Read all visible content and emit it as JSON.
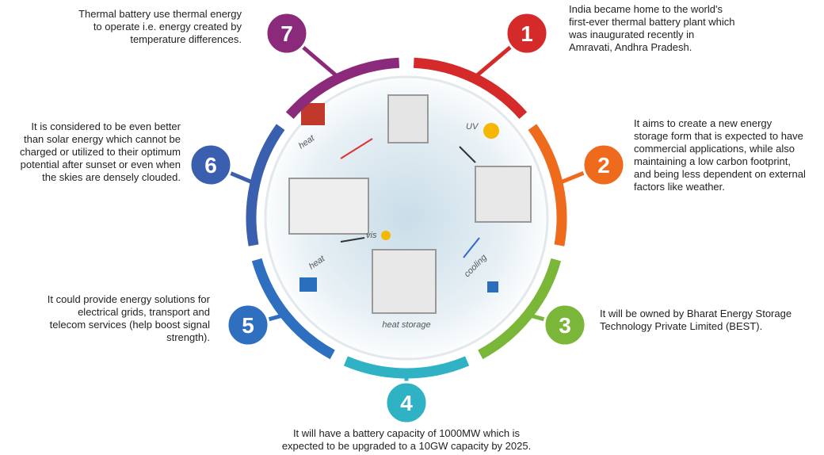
{
  "items": [
    {
      "number": "1",
      "lines": [
        "India became home to the world's",
        "first-ever thermal battery plant which",
        "was inaugurated recently in",
        "Amravati, Andhra Pradesh."
      ]
    },
    {
      "number": "2",
      "lines": [
        "It aims to create a new energy",
        "storage form that is expected to have",
        "commercial applications, while also",
        "maintaining a low carbon footprint,",
        "and being less dependent on external",
        "factors like weather."
      ]
    },
    {
      "number": "3",
      "lines": [
        "It will be owned by Bharat Energy Storage",
        "Technology Private Limited (BEST)."
      ]
    },
    {
      "number": "4",
      "lines": [
        "It will have a battery capacity of 1000MW which is",
        "expected to be upgraded to a 10GW capacity by 2025."
      ]
    },
    {
      "number": "5",
      "lines": [
        "It could provide energy solutions for",
        "electrical grids, transport and",
        "telecom services (help boost signal",
        "strength)."
      ]
    },
    {
      "number": "6",
      "lines": [
        "It is considered to be even better",
        "than solar energy which cannot be",
        "charged or utilized to their optimum",
        "potential after sunset or even when",
        "the skies are densely clouded."
      ]
    },
    {
      "number": "7",
      "lines": [
        "Thermal battery use thermal energy",
        "to operate i.e. energy created by",
        "temperature differences."
      ]
    }
  ],
  "center": {
    "heat_top": "heat",
    "uv": "UV",
    "cooling": "cooling",
    "heat_storage": "heat storage",
    "vis": "vis",
    "heat_bottom": "heat"
  }
}
